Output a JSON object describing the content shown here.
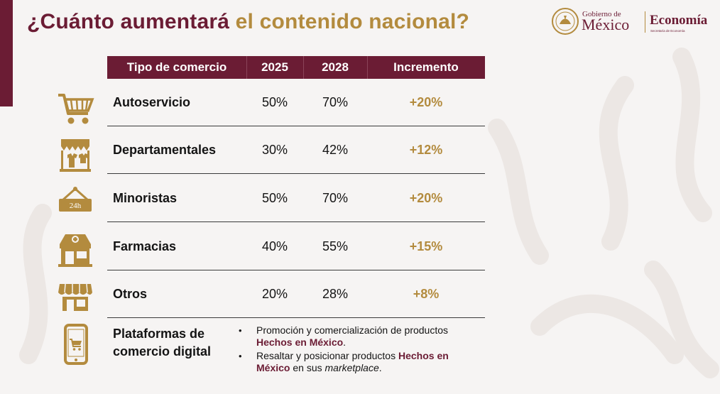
{
  "title": {
    "part1": "¿Cuánto aumentará ",
    "part2": "el contenido nacional?"
  },
  "logo": {
    "gobierno_small": "Gobierno de",
    "gobierno_big": "México",
    "economia": "Economía",
    "economia_sub": "Secretaría de Economía"
  },
  "table": {
    "headers": [
      "Tipo de comercio",
      "2025",
      "2028",
      "Incremento"
    ],
    "rows": [
      {
        "name": "Autoservicio",
        "y2025": "50%",
        "y2028": "70%",
        "increment": "+20%",
        "icon": "shopping-cart-icon"
      },
      {
        "name": "Departamentales",
        "y2025": "30%",
        "y2028": "42%",
        "increment": "+12%",
        "icon": "clothing-store-icon"
      },
      {
        "name": "Minoristas",
        "y2025": "50%",
        "y2028": "70%",
        "increment": "+20%",
        "icon": "24h-sign-icon"
      },
      {
        "name": "Farmacias",
        "y2025": "40%",
        "y2028": "55%",
        "increment": "+15%",
        "icon": "pharmacy-icon"
      },
      {
        "name": "Otros",
        "y2025": "20%",
        "y2028": "28%",
        "increment": "+8%",
        "icon": "storefront-icon"
      }
    ],
    "digital": {
      "name": "Plataformas de comercio digital",
      "icon": "smartphone-cart-icon",
      "bullet1_text": "Promoción y comercialización de productos ",
      "bullet1_highlight": "Hechos en México",
      "bullet1_end": ".",
      "bullet2_text": "Resaltar y posicionar productos ",
      "bullet2_highlight": "Hechos en México",
      "bullet2_middle": " en sus ",
      "bullet2_italic": "marketplace",
      "bullet2_end": "."
    }
  },
  "icon_24h_label": "24h",
  "colors": {
    "burgundy": "#6b1c34",
    "gold": "#b38b3e"
  }
}
